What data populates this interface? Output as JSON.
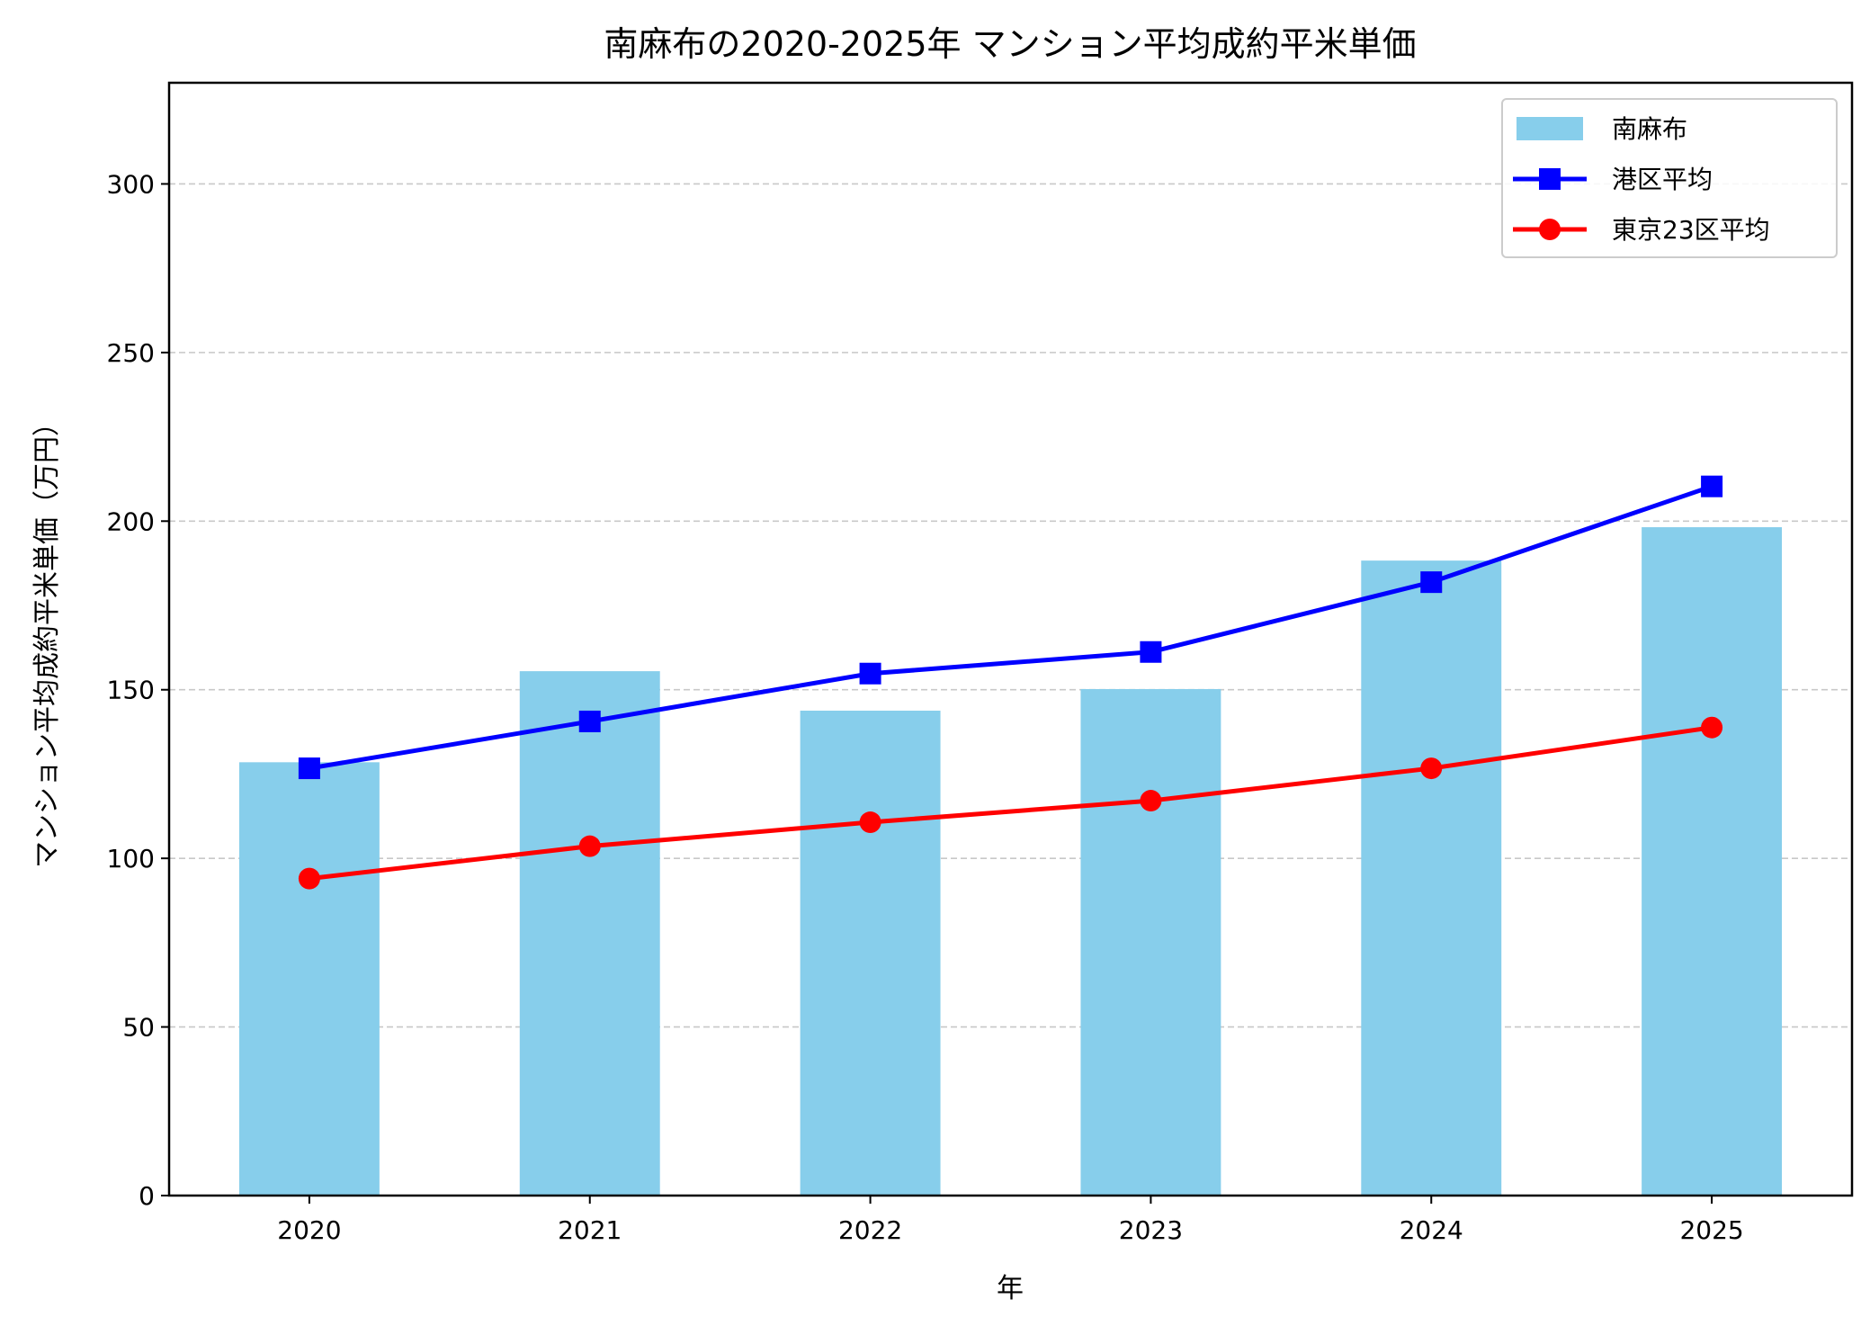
{
  "chart_data": {
    "type": "bar+line",
    "title": "南麻布の2020-2025年 マンション平均成約平米単価",
    "xlabel": "年",
    "ylabel": "マンション平均成約平米単価（万円）",
    "categories": [
      "2020",
      "2021",
      "2022",
      "2023",
      "2024",
      "2025"
    ],
    "ylim": [
      0,
      330
    ],
    "yticks": [
      0,
      50,
      100,
      150,
      200,
      250,
      300
    ],
    "grid": "y, dashed",
    "legend_position": "top-right",
    "series": [
      {
        "name": "南麻布",
        "kind": "bar",
        "color": "#87ceeb",
        "values": [
          128.5,
          155.5,
          143.8,
          150.2,
          188.3,
          198.2
        ]
      },
      {
        "name": "港区平均",
        "kind": "line",
        "marker": "square",
        "color": "#0000ff",
        "values": [
          126.7,
          140.6,
          154.8,
          161.2,
          181.9,
          210.3
        ]
      },
      {
        "name": "東京23区平均",
        "kind": "line",
        "marker": "circle",
        "color": "#ff0000",
        "values": [
          94.0,
          103.6,
          110.7,
          117.1,
          126.7,
          138.8
        ]
      }
    ]
  }
}
